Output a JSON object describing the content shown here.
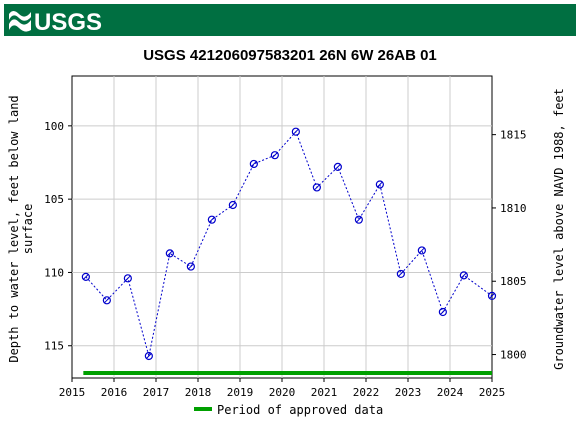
{
  "header": {
    "logo_text": "USGS",
    "brand_color": "#006f41"
  },
  "chart_data": {
    "type": "scatter",
    "title": "USGS 421206097583201 26N 6W 26AB  01",
    "ylabel_left": "Depth to water level, feet below land surface",
    "ylabel_left_lines": [
      "Depth to water level, feet below land",
      "surface"
    ],
    "ylabel_right": "Groundwater level above NAVD 1988, feet",
    "xlim": [
      2015,
      2025
    ],
    "ylim_left": [
      117.2,
      96.6
    ],
    "ylim_right": [
      1798.4,
      1819.0
    ],
    "x_ticks": [
      2015,
      2016,
      2017,
      2018,
      2019,
      2020,
      2021,
      2022,
      2023,
      2024,
      2025
    ],
    "x_tick_labels": [
      "2015",
      "2016",
      "2017",
      "2018",
      "2019",
      "2020",
      "2021",
      "2022",
      "2023",
      "2024",
      "2025"
    ],
    "y_ticks_left": [
      100,
      105,
      110,
      115
    ],
    "y_tick_labels_left": [
      "100",
      "105",
      "110",
      "115"
    ],
    "y_ticks_right": [
      1800,
      1805,
      1810,
      1815
    ],
    "y_tick_labels_right": [
      "1800",
      "1805",
      "1810",
      "1815"
    ],
    "series": [
      {
        "points": [
          {
            "x": 2015.33,
            "y": 110.3
          },
          {
            "x": 2015.83,
            "y": 111.9
          },
          {
            "x": 2016.33,
            "y": 110.4
          },
          {
            "x": 2016.83,
            "y": 115.7
          },
          {
            "x": 2017.33,
            "y": 108.7
          },
          {
            "x": 2017.83,
            "y": 109.6
          },
          {
            "x": 2018.33,
            "y": 106.4
          },
          {
            "x": 2018.83,
            "y": 105.4
          },
          {
            "x": 2019.33,
            "y": 102.6
          },
          {
            "x": 2019.83,
            "y": 102.0
          },
          {
            "x": 2020.33,
            "y": 100.4
          },
          {
            "x": 2020.83,
            "y": 104.2
          },
          {
            "x": 2021.33,
            "y": 102.8
          },
          {
            "x": 2021.83,
            "y": 106.4
          },
          {
            "x": 2022.33,
            "y": 104.0
          },
          {
            "x": 2022.83,
            "y": 110.1
          },
          {
            "x": 2023.33,
            "y": 108.5
          },
          {
            "x": 2023.83,
            "y": 112.7
          },
          {
            "x": 2024.33,
            "y": 110.2
          },
          {
            "x": 2025.0,
            "y": 111.6
          }
        ],
        "color": "#0000cc"
      }
    ],
    "approved_period": {
      "x_start": 2015.27,
      "x_end": 2025.0,
      "color": "#00a000"
    },
    "legend": {
      "label": "Period of approved data",
      "placement": "bottom-center"
    },
    "grid": true
  }
}
